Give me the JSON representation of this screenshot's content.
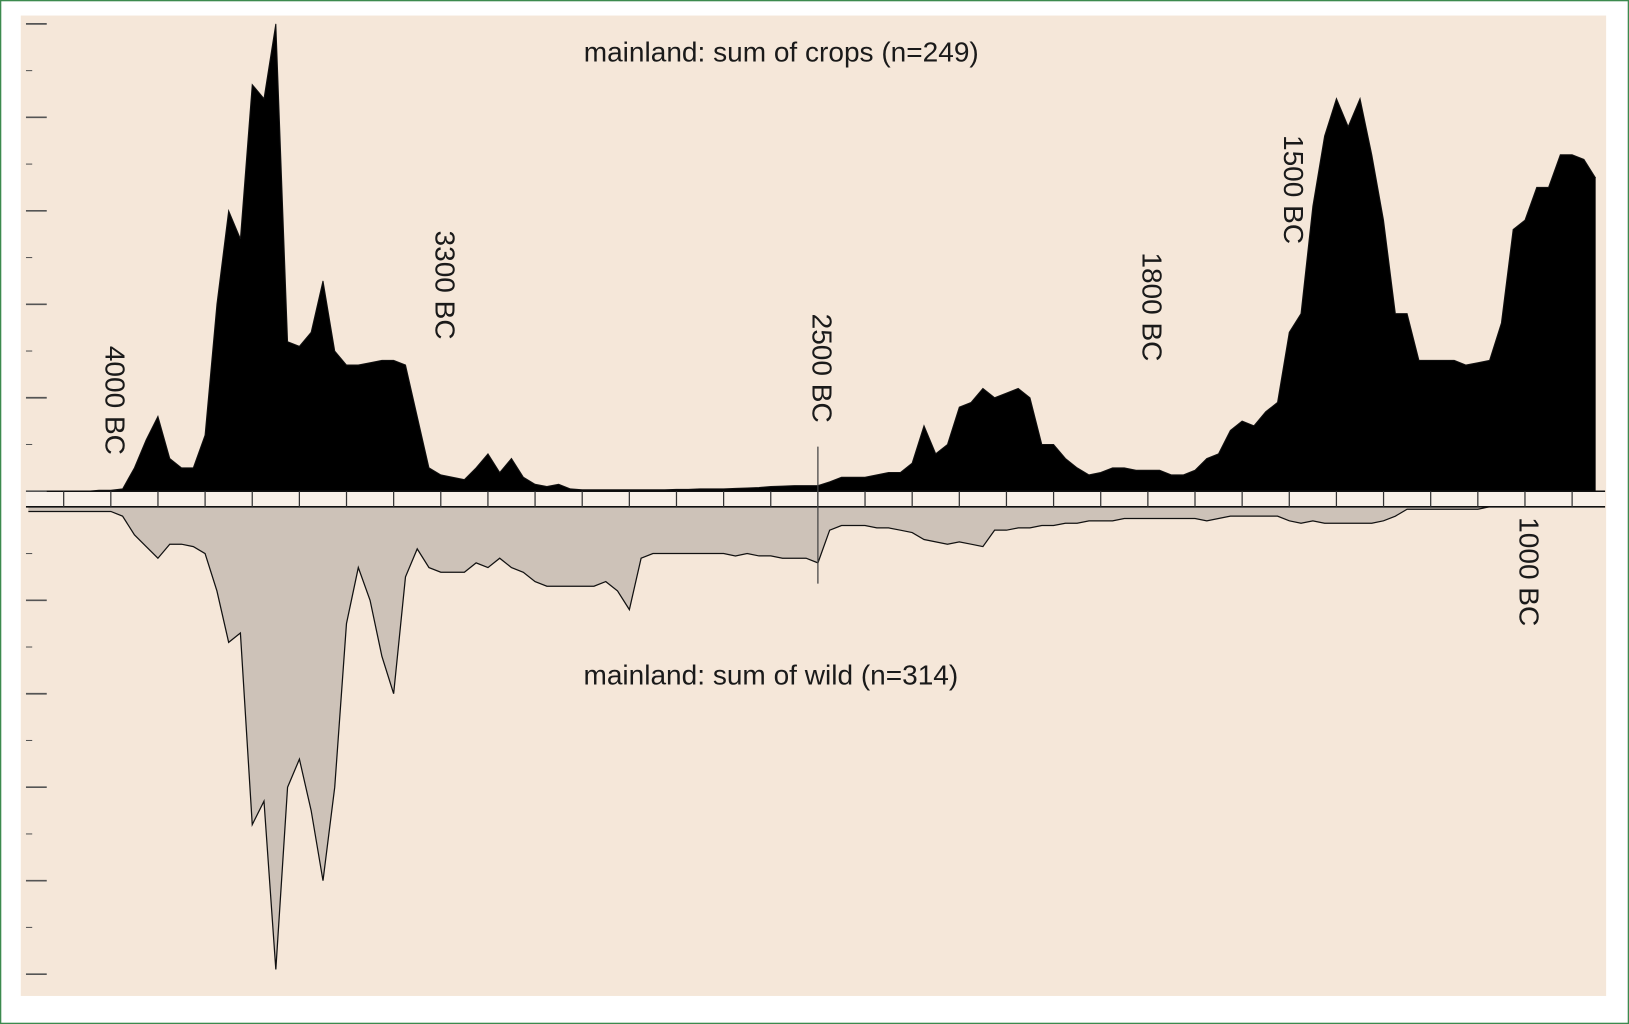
{
  "chart_data": {
    "type": "mirror-area",
    "x": [
      -4175,
      -4150,
      -4125,
      -4100,
      -4075,
      -4050,
      -4025,
      -4000,
      -3975,
      -3950,
      -3925,
      -3900,
      -3875,
      -3850,
      -3825,
      -3800,
      -3775,
      -3750,
      -3725,
      -3700,
      -3675,
      -3650,
      -3625,
      -3600,
      -3575,
      -3550,
      -3525,
      -3500,
      -3475,
      -3450,
      -3425,
      -3400,
      -3375,
      -3350,
      -3325,
      -3300,
      -3275,
      -3250,
      -3225,
      -3200,
      -3175,
      -3150,
      -3125,
      -3100,
      -3075,
      -3050,
      -3025,
      -3000,
      -2975,
      -2950,
      -2925,
      -2900,
      -2875,
      -2850,
      -2825,
      -2800,
      -2775,
      -2750,
      -2725,
      -2700,
      -2675,
      -2650,
      -2625,
      -2600,
      -2575,
      -2550,
      -2525,
      -2500,
      -2475,
      -2450,
      -2425,
      -2400,
      -2375,
      -2350,
      -2325,
      -2300,
      -2275,
      -2250,
      -2225,
      -2200,
      -2175,
      -2150,
      -2125,
      -2100,
      -2075,
      -2050,
      -2025,
      -2000,
      -1975,
      -1950,
      -1925,
      -1900,
      -1875,
      -1850,
      -1825,
      -1800,
      -1775,
      -1750,
      -1725,
      -1700,
      -1675,
      -1650,
      -1625,
      -1600,
      -1575,
      -1550,
      -1525,
      -1500,
      -1475,
      -1450,
      -1425,
      -1400,
      -1375,
      -1350,
      -1325,
      -1300,
      -1275,
      -1250,
      -1225,
      -1200,
      -1175,
      -1150,
      -1125,
      -1100,
      -1075,
      -1050,
      -1025,
      -1000,
      -975,
      -950,
      -925,
      -900,
      -875,
      -850
    ],
    "series": [
      {
        "name": "mainland: sum of crops (n=249)",
        "color": "#000000",
        "values": [
          0,
          0,
          0,
          0,
          0,
          0,
          0.02,
          0.02,
          0.05,
          0.5,
          1.1,
          1.6,
          0.7,
          0.5,
          0.5,
          1.2,
          4.0,
          6.0,
          5.4,
          8.7,
          8.4,
          10,
          3.2,
          3.1,
          3.4,
          4.5,
          3.0,
          2.7,
          2.7,
          2.75,
          2.8,
          2.8,
          2.7,
          1.6,
          0.5,
          0.35,
          0.3,
          0.25,
          0.5,
          0.8,
          0.4,
          0.7,
          0.3,
          0.15,
          0.1,
          0.15,
          0.05,
          0.03,
          0.03,
          0.03,
          0.03,
          0.03,
          0.03,
          0.03,
          0.03,
          0.04,
          0.04,
          0.05,
          0.05,
          0.05,
          0.06,
          0.07,
          0.08,
          0.1,
          0.11,
          0.12,
          0.12,
          0.12,
          0.2,
          0.3,
          0.3,
          0.3,
          0.35,
          0.4,
          0.4,
          0.6,
          1.4,
          0.8,
          1.0,
          1.8,
          1.9,
          2.2,
          2.0,
          2.1,
          2.2,
          2.0,
          1.0,
          1.0,
          0.7,
          0.5,
          0.35,
          0.4,
          0.5,
          0.5,
          0.45,
          0.45,
          0.45,
          0.35,
          0.35,
          0.45,
          0.7,
          0.8,
          1.3,
          1.5,
          1.4,
          1.7,
          1.9,
          3.4,
          3.8,
          6.1,
          7.6,
          8.4,
          7.8,
          8.4,
          7.2,
          5.8,
          3.8,
          3.8,
          2.8,
          2.8,
          2.8,
          2.8,
          2.7,
          2.75,
          2.8,
          3.6,
          5.6,
          5.8,
          6.5,
          6.5,
          7.2,
          7.2,
          7.1,
          6.7
        ]
      },
      {
        "name": "mainland: sum of wild (n=314)",
        "color": "#cdc2b8",
        "values": [
          -0.1,
          -0.1,
          -0.1,
          -0.1,
          -0.1,
          -0.1,
          -0.1,
          -0.1,
          -0.2,
          -0.6,
          -0.85,
          -1.1,
          -0.8,
          -0.8,
          -0.85,
          -1.0,
          -1.8,
          -2.9,
          -2.7,
          -6.8,
          -6.3,
          -9.9,
          -6.0,
          -5.4,
          -6.5,
          -8.0,
          -6.0,
          -2.5,
          -1.3,
          -2.0,
          -3.2,
          -4.0,
          -1.5,
          -0.9,
          -1.3,
          -1.4,
          -1.4,
          -1.4,
          -1.2,
          -1.3,
          -1.1,
          -1.3,
          -1.4,
          -1.6,
          -1.7,
          -1.7,
          -1.7,
          -1.7,
          -1.7,
          -1.6,
          -1.8,
          -2.2,
          -1.1,
          -1.0,
          -1.0,
          -1.0,
          -1.0,
          -1.0,
          -1.0,
          -1.0,
          -1.05,
          -1.0,
          -1.05,
          -1.05,
          -1.1,
          -1.1,
          -1.1,
          -1.2,
          -0.5,
          -0.4,
          -0.4,
          -0.4,
          -0.45,
          -0.45,
          -0.5,
          -0.55,
          -0.7,
          -0.75,
          -0.8,
          -0.75,
          -0.8,
          -0.85,
          -0.5,
          -0.5,
          -0.45,
          -0.45,
          -0.4,
          -0.4,
          -0.35,
          -0.35,
          -0.3,
          -0.3,
          -0.3,
          -0.25,
          -0.25,
          -0.25,
          -0.25,
          -0.25,
          -0.25,
          -0.25,
          -0.3,
          -0.25,
          -0.2,
          -0.2,
          -0.2,
          -0.2,
          -0.2,
          -0.3,
          -0.35,
          -0.3,
          -0.35,
          -0.35,
          -0.35,
          -0.35,
          -0.35,
          -0.3,
          -0.2,
          -0.05,
          -0.05,
          -0.05,
          -0.05,
          -0.05,
          -0.05,
          -0.05,
          0,
          0,
          0,
          0,
          0,
          0,
          0,
          0,
          0,
          0
        ]
      }
    ],
    "xlim": [
      -4180,
      -830
    ],
    "xticks": [
      {
        "value": -4000,
        "label": "4000 BC"
      },
      {
        "value": -3300,
        "label": "3300 BC"
      },
      {
        "value": -2500,
        "label": "2500 BC"
      },
      {
        "value": -1800,
        "label": "1800 BC"
      },
      {
        "value": -1500,
        "label": "1500 BC"
      },
      {
        "value": -1000,
        "label": "1000 BC"
      }
    ],
    "xminorticks": [
      -4100,
      -3900,
      -3800,
      -3700,
      -3600,
      -3500,
      -3400,
      -3200,
      -3100,
      -3000,
      -2900,
      -2800,
      -2700,
      -2600,
      -2400,
      -2300,
      -2200,
      -2100,
      -2000,
      -1900,
      -1700,
      -1600,
      -1400,
      -1300,
      -1200,
      -1100,
      -900
    ],
    "ylim": [
      -10,
      10
    ],
    "yticks": [
      -10,
      -9,
      -8,
      -7,
      -6,
      -5,
      -4,
      -3,
      -2,
      -1,
      0,
      1,
      2,
      3,
      4,
      5,
      6,
      7,
      8,
      9,
      10
    ]
  }
}
